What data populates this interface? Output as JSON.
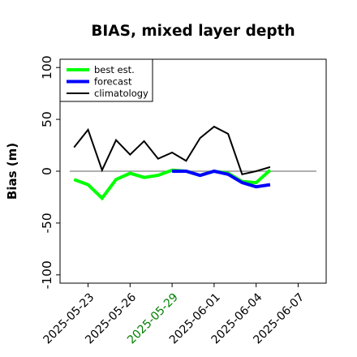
{
  "chart_data": {
    "type": "line",
    "title": "BIAS, mixed layer depth",
    "ylabel": "Bias (m)",
    "xlabel": "",
    "ylim": [
      -108,
      108
    ],
    "xlim": [
      "2025-05-21",
      "2025-06-09"
    ],
    "yticks": [
      -100,
      -50,
      0,
      50,
      100
    ],
    "ytick_labels": [
      "-100",
      "-50",
      "0",
      "50",
      "100"
    ],
    "xticks": [
      "2025-05-23",
      "2025-05-26",
      "2025-05-29",
      "2025-06-01",
      "2025-06-04",
      "2025-06-07"
    ],
    "xtick_labels": [
      "2025-05-23",
      "2025-05-26",
      "2025-05-29",
      "2025-06-01",
      "2025-06-04",
      "2025-06-07"
    ],
    "highlight_tick": "2025-05-29",
    "highlight_color": "#008000",
    "reference_line": 0,
    "grid": false,
    "legend_position": "top-left",
    "series": [
      {
        "name": "best est.",
        "color": "#00ff00",
        "x": [
          "2025-05-22",
          "2025-05-23",
          "2025-05-24",
          "2025-05-25",
          "2025-05-26",
          "2025-05-27",
          "2025-05-28",
          "2025-05-29",
          "2025-05-30",
          "2025-05-31",
          "2025-06-01",
          "2025-06-02",
          "2025-06-03",
          "2025-06-04",
          "2025-06-05"
        ],
        "y": [
          -8,
          -13,
          -26,
          -8,
          -2,
          -6,
          -4,
          1,
          0,
          -4,
          0,
          -2,
          -10,
          -11,
          1
        ]
      },
      {
        "name": "forecast",
        "color": "#0000ff",
        "x": [
          "2025-05-29",
          "2025-05-30",
          "2025-05-31",
          "2025-06-01",
          "2025-06-02",
          "2025-06-03",
          "2025-06-04",
          "2025-06-05"
        ],
        "y": [
          0,
          0,
          -4,
          0,
          -3,
          -11,
          -15,
          -13
        ]
      },
      {
        "name": "climatology",
        "color": "#000000",
        "x": [
          "2025-05-22",
          "2025-05-23",
          "2025-05-24",
          "2025-05-25",
          "2025-05-26",
          "2025-05-27",
          "2025-05-28",
          "2025-05-29",
          "2025-05-30",
          "2025-05-31",
          "2025-06-01",
          "2025-06-02",
          "2025-06-03",
          "2025-06-04",
          "2025-06-05"
        ],
        "y": [
          23,
          40,
          1,
          30,
          16,
          29,
          12,
          18,
          10,
          32,
          43,
          36,
          -3,
          0,
          4
        ]
      }
    ]
  }
}
